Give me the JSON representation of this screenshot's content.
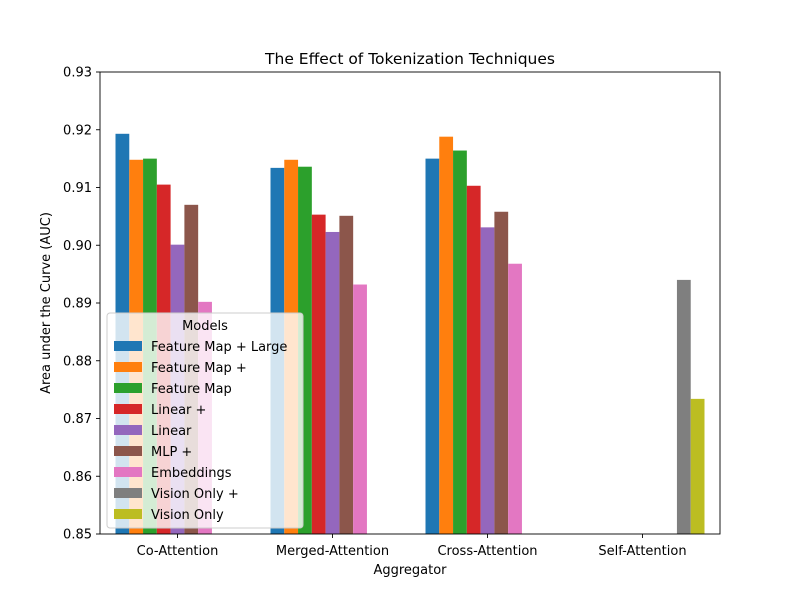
{
  "chart_data": {
    "type": "bar",
    "title": "The Effect of Tokenization Techniques",
    "xlabel": "Aggregator",
    "ylabel": "Area under the Curve (AUC)",
    "ylim": [
      0.85,
      0.93
    ],
    "yticks": [
      0.85,
      0.86,
      0.87,
      0.88,
      0.89,
      0.9,
      0.91,
      0.92,
      0.93
    ],
    "ytick_labels": [
      "0.85",
      "0.86",
      "0.87",
      "0.88",
      "0.89",
      "0.90",
      "0.91",
      "0.92",
      "0.93"
    ],
    "categories": [
      "Co-Attention",
      "Merged-Attention",
      "Cross-Attention",
      "Self-Attention"
    ],
    "grid": false,
    "legend": {
      "title": "Models",
      "placement": "lower-left"
    },
    "series": [
      {
        "name": "Feature Map + Large",
        "color": "#1f77b4",
        "values": [
          0.9193,
          0.9134,
          0.915,
          null
        ]
      },
      {
        "name": "Feature Map +",
        "color": "#ff7f0e",
        "values": [
          0.9148,
          0.9148,
          0.9188,
          null
        ]
      },
      {
        "name": "Feature Map",
        "color": "#2ca02c",
        "values": [
          0.915,
          0.9136,
          0.9164,
          null
        ]
      },
      {
        "name": "Linear +",
        "color": "#d62728",
        "values": [
          0.9105,
          0.9053,
          0.9103,
          null
        ]
      },
      {
        "name": "Linear",
        "color": "#9467bd",
        "values": [
          0.9001,
          0.9023,
          0.9031,
          null
        ]
      },
      {
        "name": "MLP +",
        "color": "#8c564b",
        "values": [
          0.907,
          0.9051,
          0.9058,
          null
        ]
      },
      {
        "name": "Embeddings",
        "color": "#e377c2",
        "values": [
          0.8902,
          0.8932,
          0.8968,
          null
        ]
      },
      {
        "name": "Vision Only +",
        "color": "#7f7f7f",
        "values": [
          null,
          null,
          null,
          0.894
        ]
      },
      {
        "name": "Vision Only",
        "color": "#bcbd22",
        "values": [
          null,
          null,
          null,
          0.8734
        ]
      }
    ]
  }
}
